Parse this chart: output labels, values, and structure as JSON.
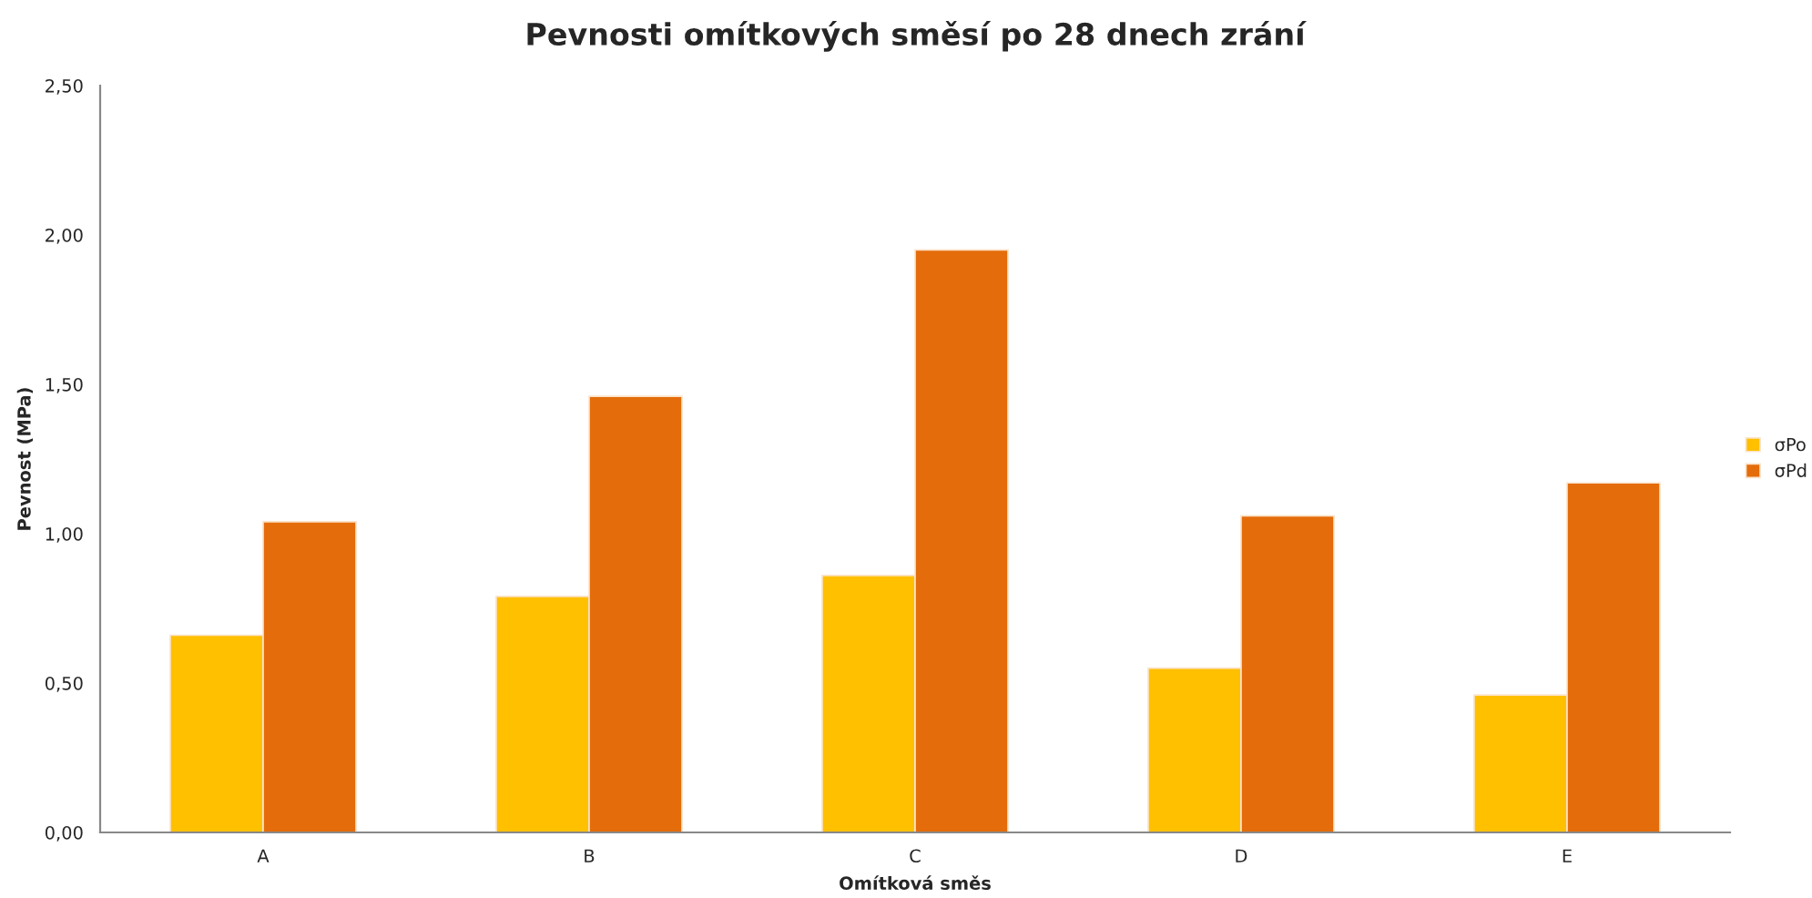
{
  "chart_data": {
    "type": "bar",
    "title": "Pevnosti omítkových směsí po 28 dnech zrání",
    "xlabel": "Omítková směs",
    "ylabel": "Pevnost (MPa)",
    "categories": [
      "A",
      "B",
      "C",
      "D",
      "E"
    ],
    "series": [
      {
        "name": "σPo",
        "color": "#ffc000",
        "values": [
          0.66,
          0.79,
          0.86,
          0.55,
          0.46
        ]
      },
      {
        "name": "σPd",
        "color": "#e46c0a",
        "values": [
          1.04,
          1.46,
          1.95,
          1.06,
          1.17
        ]
      }
    ],
    "ylim": [
      0,
      2.5
    ],
    "yticks": [
      {
        "value": 0,
        "label": "0,00"
      },
      {
        "value": 0.5,
        "label": "0,50"
      },
      {
        "value": 1,
        "label": "1,00"
      },
      {
        "value": 1.5,
        "label": "1,50"
      },
      {
        "value": 2,
        "label": "2,00"
      },
      {
        "value": 2.5,
        "label": "2,50"
      }
    ],
    "grid": false,
    "legend": "right"
  }
}
